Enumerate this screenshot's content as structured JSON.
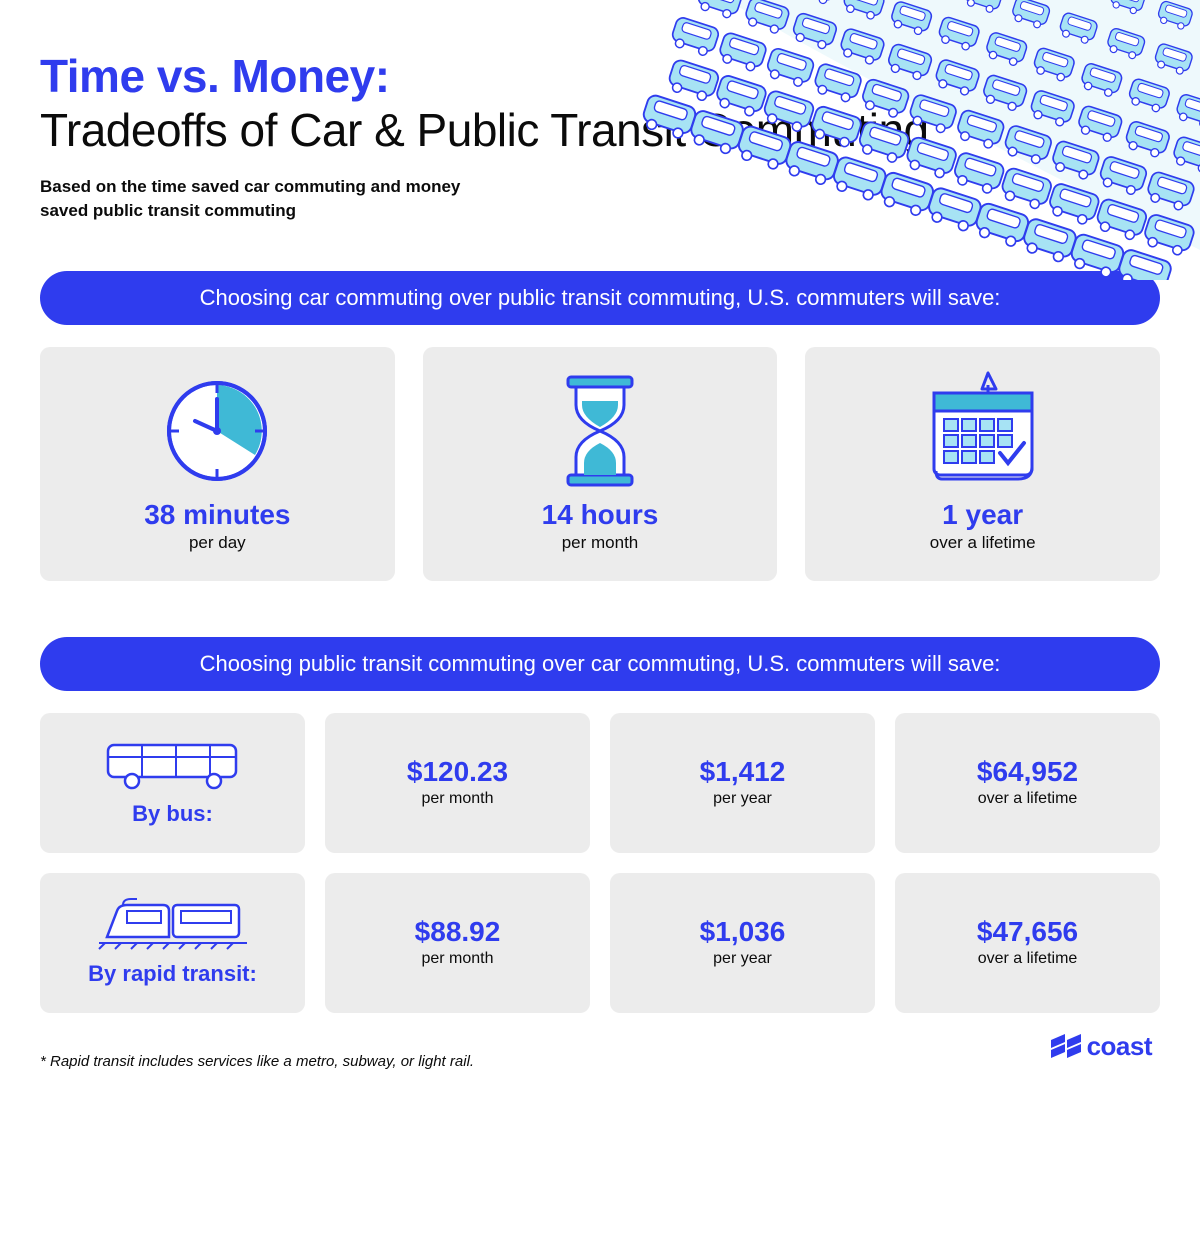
{
  "colors": {
    "accent": "#2f3cee",
    "text": "#0b0b0b",
    "card_bg": "#ececec",
    "banner_bg": "#2f3cee",
    "banner_text": "#ffffff",
    "icon_fill": "#3fb9d6",
    "icon_stroke": "#2f3cee",
    "traffic_fill": "#a7e3f4",
    "brand": "#2f3cee"
  },
  "header": {
    "title_accent": "Time vs. Money:",
    "title_main": "Tradeoffs of Car & Public Transit Commuting",
    "subtitle": "Based on the time saved car commuting and money saved public transit commuting"
  },
  "section_time": {
    "banner": "Choosing car commuting over public transit commuting, U.S. commuters will save:",
    "cards": [
      {
        "icon": "clock",
        "value": "38 minutes",
        "period": "per day"
      },
      {
        "icon": "hourglass",
        "value": "14 hours",
        "period": "per month"
      },
      {
        "icon": "calendar",
        "value": "1 year",
        "period": "over a lifetime"
      }
    ]
  },
  "section_money": {
    "banner": "Choosing public transit commuting over car commuting, U.S. commuters will save:",
    "rows": [
      {
        "mode_icon": "bus",
        "mode_label": "By bus:",
        "cells": [
          {
            "value": "$120.23",
            "period": "per month"
          },
          {
            "value": "$1,412",
            "period": "per year"
          },
          {
            "value": "$64,952",
            "period": "over a lifetime"
          }
        ]
      },
      {
        "mode_icon": "train",
        "mode_label": "By rapid transit:",
        "cells": [
          {
            "value": "$88.92",
            "period": "per month"
          },
          {
            "value": "$1,036",
            "period": "per year"
          },
          {
            "value": "$47,656",
            "period": "over a lifetime"
          }
        ]
      }
    ]
  },
  "footnote": "* Rapid transit includes services like a metro, subway, or light rail.",
  "brand": "coast"
}
